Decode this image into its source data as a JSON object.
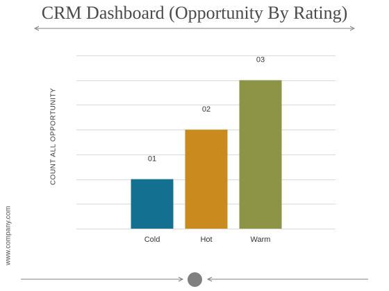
{
  "title": "CRM Dashboard (Opportunity By Rating)",
  "watermark": "www.company.com",
  "colors": {
    "background": "#ffffff",
    "gridline": "#d9d9d9",
    "arrow": "#7f7f7f",
    "knob": "#808080"
  },
  "chart_data": {
    "type": "bar",
    "categories": [
      "Cold",
      "Hot",
      "Warm"
    ],
    "values": [
      1,
      2,
      3
    ],
    "data_labels": [
      "01",
      "02",
      "03"
    ],
    "bar_colors": [
      "#13718f",
      "#c98a1e",
      "#8d9445"
    ],
    "title": "",
    "xlabel": "",
    "ylabel": "COUNT  ALL  OPPORTUNITY",
    "ylim": [
      0,
      3.5
    ],
    "grid": true,
    "legend": "none"
  }
}
